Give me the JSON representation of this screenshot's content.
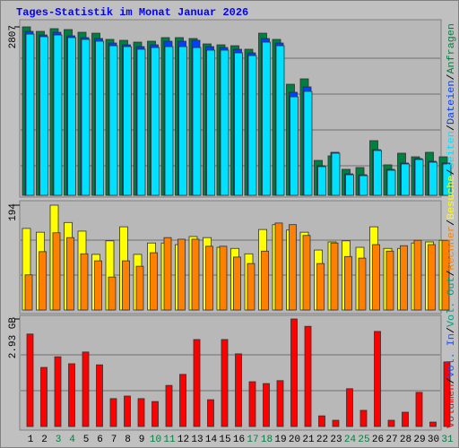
{
  "title": "Tages-Statistik im Monat Januar 2026",
  "separator": "/",
  "weekend_indices": [
    2,
    3,
    9,
    10,
    16,
    17,
    23,
    24,
    30
  ],
  "weekend_color": "#008040",
  "chart_data": [
    {
      "type": "bar",
      "ylim": [
        0,
        2807
      ],
      "yticks": [
        2807
      ],
      "series": [
        {
          "name": "Anfragen",
          "color": "#008040",
          "values": [
            2807,
            2732,
            2777,
            2762,
            2717,
            2702,
            2598,
            2583,
            2553,
            2568,
            2628,
            2628,
            2613,
            2523,
            2508,
            2493,
            2434,
            2702,
            2598,
            1851,
            1941,
            582,
            657,
            433,
            463,
            911,
            508,
            702,
            642,
            717,
            642
          ]
        },
        {
          "name": "Dateien",
          "color": "#0040ff",
          "values": [
            2732,
            2672,
            2717,
            2658,
            2628,
            2613,
            2538,
            2508,
            2478,
            2508,
            2568,
            2568,
            2583,
            2478,
            2463,
            2434,
            2374,
            2613,
            2538,
            1717,
            1807,
            493,
            717,
            358,
            343,
            761,
            433,
            538,
            612,
            567,
            538
          ]
        },
        {
          "name": "Seiten",
          "color": "#00e0ff",
          "values": [
            2687,
            2643,
            2672,
            2628,
            2598,
            2568,
            2493,
            2478,
            2434,
            2463,
            2478,
            2478,
            2463,
            2419,
            2419,
            2374,
            2329,
            2553,
            2493,
            1642,
            1732,
            478,
            702,
            343,
            328,
            747,
            418,
            523,
            597,
            552,
            523
          ]
        }
      ]
    },
    {
      "type": "bar",
      "ylim": [
        0,
        194
      ],
      "yticks": [
        194
      ],
      "series": [
        {
          "name": "Besuche",
          "color": "#ffff00",
          "values": [
            151,
            144,
            194,
            162,
            146,
            103,
            128,
            154,
            103,
            124,
            124,
            121,
            136,
            134,
            116,
            114,
            104,
            149,
            158,
            148,
            144,
            111,
            126,
            128,
            116,
            154,
            114,
            114,
            124,
            126,
            129
          ]
        },
        {
          "name": "Rechner",
          "color": "#ff8000",
          "values": [
            65,
            108,
            143,
            134,
            104,
            91,
            61,
            91,
            81,
            106,
            134,
            131,
            131,
            118,
            118,
            98,
            86,
            109,
            161,
            158,
            138,
            86,
            124,
            99,
            96,
            121,
            109,
            119,
            129,
            121,
            129
          ]
        }
      ]
    },
    {
      "type": "bar",
      "ylim": [
        0,
        2.93
      ],
      "yticks": [
        {
          "value": 2.93,
          "label": "2.93 GB"
        }
      ],
      "categories": [
        "1",
        "2",
        "3",
        "4",
        "5",
        "6",
        "7",
        "8",
        "9",
        "10",
        "11",
        "12",
        "13",
        "14",
        "15",
        "16",
        "17",
        "18",
        "19",
        "20",
        "21",
        "22",
        "23",
        "24",
        "25",
        "26",
        "27",
        "28",
        "29",
        "30",
        "31"
      ],
      "series": [
        {
          "name": "Volumen",
          "color": "#ff0000",
          "values": [
            2.52,
            1.61,
            1.9,
            1.71,
            2.03,
            1.68,
            0.76,
            0.83,
            0.76,
            0.68,
            1.12,
            1.42,
            2.37,
            0.73,
            2.37,
            1.98,
            1.22,
            1.17,
            1.25,
            2.93,
            2.73,
            0.29,
            0.17,
            1.03,
            0.44,
            2.59,
            0.17,
            0.39,
            0.93,
            0.12,
            1.76
          ]
        }
      ],
      "legend_extra": [
        {
          "name": "Vol. In",
          "color": "#2050ff"
        },
        {
          "name": "Vol. Out",
          "color": "#00a080"
        }
      ]
    }
  ]
}
